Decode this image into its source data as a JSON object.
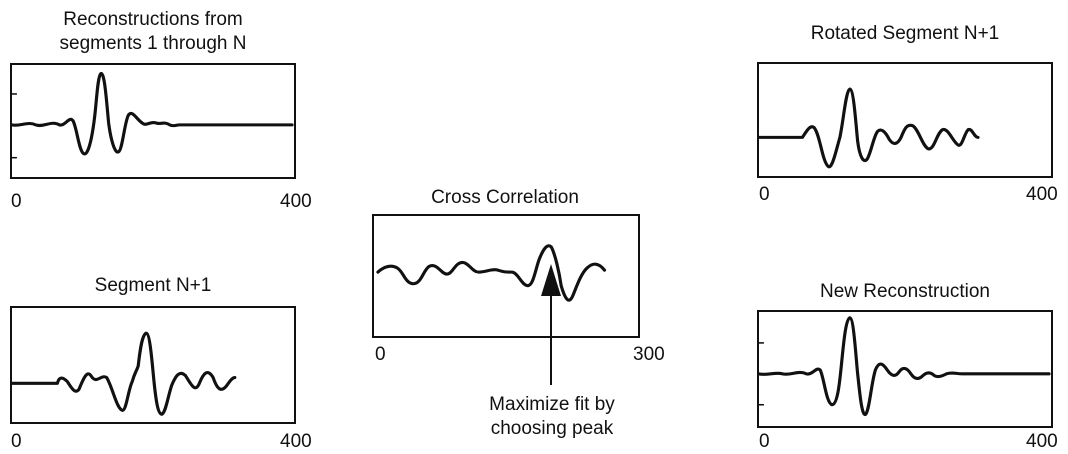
{
  "panels": {
    "reconstructions": {
      "title_line1": "Reconstructions from",
      "title_line2": "segments 1 through N",
      "x_start": "0",
      "x_end": "400"
    },
    "segment": {
      "title": "Segment N+1",
      "x_start": "0",
      "x_end": "400"
    },
    "cross_correlation": {
      "title": "Cross Correlation",
      "x_start": "0",
      "x_end": "300"
    },
    "rotated_segment": {
      "title": "Rotated Segment N+1",
      "x_start": "0",
      "x_end": "400"
    },
    "new_reconstruction": {
      "title": "New Reconstruction",
      "x_start": "0",
      "x_end": "400"
    }
  },
  "annotation": {
    "line1": "Maximize fit by",
    "line2": "choosing peak"
  },
  "colors": {
    "ink": "#111111",
    "background": "#ffffff"
  }
}
